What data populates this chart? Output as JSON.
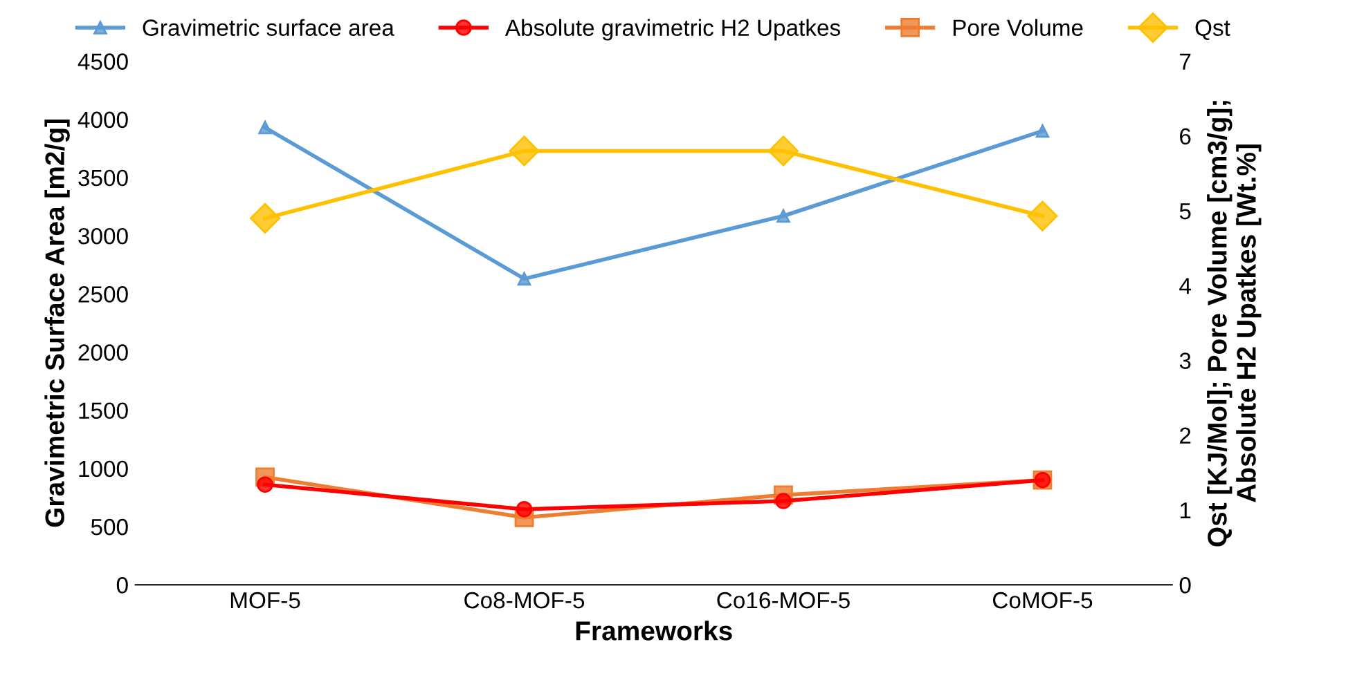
{
  "chart_data": {
    "type": "line",
    "xlabel": "Frameworks",
    "ylabel": "Gravimetric Surface Area [m2/g]",
    "y2label": "Qst [KJ/Mol]; Pore Volume [cm3/g];\nAbsolute H2 Upatkes [Wt.%]",
    "categories": [
      "MOF-5",
      "Co8-MOF-5",
      "Co16-MOF-5",
      "CoMOF-5"
    ],
    "series": [
      {
        "name": "Gravimetric surface area",
        "color": "#5b9bd5",
        "marker": "triangle",
        "values": [
          3930,
          2630,
          3170,
          3900
        ]
      },
      {
        "name": "Absolute gravimetric H2 Upatkes",
        "color": "#ff0000",
        "marker": "circle",
        "axis": "y2",
        "values": [
          1.34,
          1.01,
          1.12,
          1.4
        ]
      },
      {
        "name": "Pore Volume",
        "color": "#ed7d31",
        "marker": "square",
        "axis": "y2",
        "values": [
          1.44,
          0.9,
          1.2,
          1.4
        ]
      },
      {
        "name": "Qst",
        "color": "#ffc000",
        "marker": "diamond",
        "axis": "y2",
        "values": [
          4.9,
          5.8,
          5.8,
          4.93
        ]
      }
    ],
    "ylim": [
      0,
      4500
    ],
    "yticks": [
      0,
      500,
      1000,
      1500,
      2000,
      2500,
      3000,
      3500,
      4000,
      4500
    ],
    "y2lim": [
      0,
      7
    ],
    "y2ticks": [
      0,
      1,
      2,
      3,
      4,
      5,
      6,
      7
    ],
    "grid": false,
    "legend": "top",
    "line_style": "solid"
  }
}
